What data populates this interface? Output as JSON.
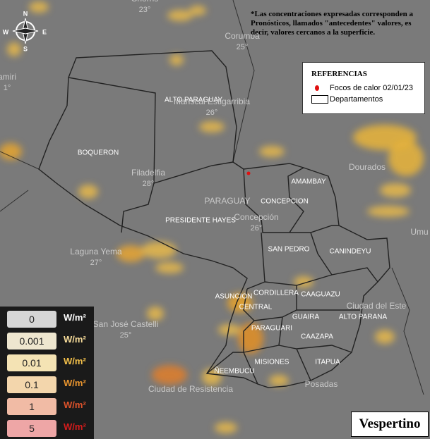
{
  "compass": {
    "north": "N",
    "south": "S",
    "east": "E",
    "west": "W"
  },
  "note": "*Las concentraciones expresadas corresponden a Pronósticos, llamados \"antecedentes\" valores, es decir, valores cercanos a la superficie.",
  "references": {
    "title": "REFERENCIAS",
    "items": [
      "Focos de calor 02/01/23",
      "Departamentos"
    ]
  },
  "departments": [
    "ALTO PARAGUAY",
    "BOQUERON",
    "PRESIDENTE HAYES",
    "AMAMBAY",
    "CONCEPCION",
    "SAN PEDRO",
    "CANINDEYU",
    "CORDILLERA",
    "CAAGUAZU",
    "ASUNCION",
    "CENTRAL",
    "GUAIRA",
    "ALTO PARANA",
    "PARAGUARI",
    "CAAZAPA",
    "MISIONES",
    "ITAPUA",
    "ÑEEMBUCU"
  ],
  "places": [
    {
      "name": "Chorris",
      "temp": "23°"
    },
    {
      "name": "Corumbá",
      "temp": "25°"
    },
    {
      "name": "Mariscal Estigarribia",
      "temp": "26°"
    },
    {
      "name": "Filadelfia",
      "temp": "28°"
    },
    {
      "name": "Concepción",
      "temp": "26°"
    },
    {
      "name": "Laguna Yema",
      "temp": "27°"
    },
    {
      "name": "San José Castelli",
      "temp": "25°"
    },
    {
      "name": "amiri",
      "temp": "1°"
    },
    {
      "name": "Dourados"
    },
    {
      "name": "PARAGUAY"
    },
    {
      "name": "Ciudad del Este"
    },
    {
      "name": "Ciudad de Resistencia"
    },
    {
      "name": "Posadas"
    },
    {
      "name": "Umu"
    }
  ],
  "scale": {
    "unit": "W/m²",
    "levels": [
      {
        "value": 0,
        "box": "#d6d6d6",
        "color": "#ffffff"
      },
      {
        "value": 0.001,
        "box": "#eee6cf",
        "color": "#f7dc9a"
      },
      {
        "value": 0.01,
        "box": "#f4e3b4",
        "color": "#f3c04a"
      },
      {
        "value": 0.1,
        "box": "#f3d6ac",
        "color": "#ea952e"
      },
      {
        "value": 1,
        "box": "#f1bba5",
        "color": "#e0532b"
      },
      {
        "value": 5,
        "box": "#eea6a6",
        "color": "#d61c1c"
      }
    ]
  },
  "period": "Vespertino"
}
